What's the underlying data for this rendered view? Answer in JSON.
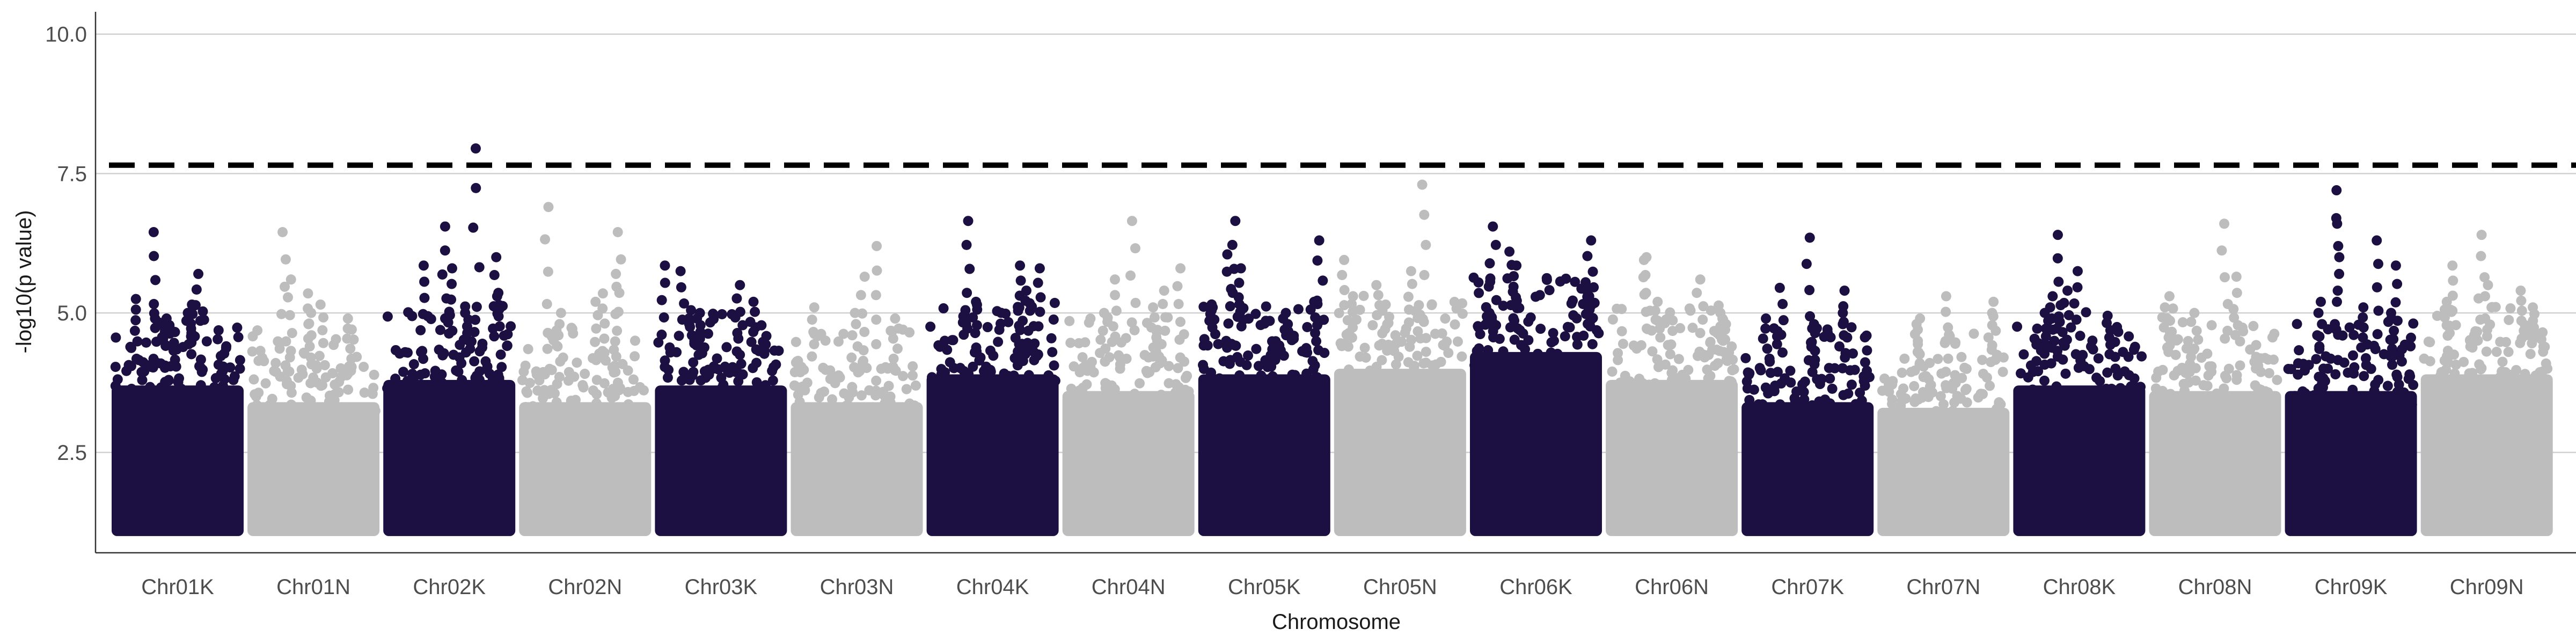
{
  "chart_data": {
    "type": "scatter",
    "subtype": "manhattan",
    "title": "",
    "xlabel": "Chromosome",
    "ylabel": "-log10(p value)",
    "ylim": [
      0.7,
      10.4
    ],
    "y_ticks": [
      2.5,
      5.0,
      7.5,
      10.0
    ],
    "y_tick_labels": [
      "2.5",
      "5.0",
      "7.5",
      "10.0"
    ],
    "grid": "horizontal major only",
    "legend": "none",
    "significance_threshold": 7.65,
    "threshold_style": "dashed black",
    "min_plotted_value": 1.0,
    "colors": {
      "dark": "#1c0f42",
      "light": "#bdbdbd",
      "threshold": "#000000",
      "grid": "#d0d0d0",
      "axis": "#333333"
    },
    "chromosomes": [
      {
        "name": "Chr01K",
        "color": "dark",
        "bulk_top": 4.3,
        "peaks": [
          6.45,
          5.7,
          5.25,
          5.15,
          5.0,
          4.9,
          4.85
        ]
      },
      {
        "name": "Chr01N",
        "color": "light",
        "bulk_top": 4.0,
        "peaks": [
          6.45,
          5.6,
          5.35,
          5.15,
          5.0,
          4.9
        ]
      },
      {
        "name": "Chr02K",
        "color": "dark",
        "bulk_top": 4.4,
        "peaks": [
          7.95,
          6.55,
          6.0,
          5.85,
          5.8,
          5.3,
          5.0
        ]
      },
      {
        "name": "Chr02N",
        "color": "light",
        "bulk_top": 4.0,
        "peaks": [
          6.9,
          6.45,
          5.7,
          5.35,
          5.2,
          5.0
        ]
      },
      {
        "name": "Chr03K",
        "color": "dark",
        "bulk_top": 4.3,
        "peaks": [
          5.85,
          5.75,
          5.5,
          5.2,
          5.05,
          4.9
        ]
      },
      {
        "name": "Chr03N",
        "color": "light",
        "bulk_top": 4.0,
        "peaks": [
          6.2,
          5.65,
          5.1,
          5.0,
          4.9
        ]
      },
      {
        "name": "Chr04K",
        "color": "dark",
        "bulk_top": 4.5,
        "peaks": [
          6.65,
          5.85,
          5.8,
          5.4,
          5.2,
          5.05
        ]
      },
      {
        "name": "Chr04N",
        "color": "light",
        "bulk_top": 4.2,
        "peaks": [
          6.65,
          5.8,
          5.6,
          5.4,
          5.1,
          5.0
        ]
      },
      {
        "name": "Chr05K",
        "color": "dark",
        "bulk_top": 4.5,
        "peaks": [
          6.65,
          6.3,
          6.05,
          5.8,
          5.2,
          5.1,
          5.0
        ]
      },
      {
        "name": "Chr05N",
        "color": "light",
        "bulk_top": 4.6,
        "peaks": [
          7.3,
          5.95,
          5.75,
          5.5,
          5.3,
          5.15
        ]
      },
      {
        "name": "Chr06K",
        "color": "dark",
        "bulk_top": 4.9,
        "peaks": [
          6.55,
          6.3,
          6.1,
          5.85,
          5.55,
          5.3,
          5.0
        ]
      },
      {
        "name": "Chr06N",
        "color": "light",
        "bulk_top": 4.4,
        "peaks": [
          6.0,
          5.95,
          5.6,
          5.2,
          5.0,
          4.9
        ]
      },
      {
        "name": "Chr07K",
        "color": "dark",
        "bulk_top": 4.0,
        "peaks": [
          6.35,
          5.45,
          5.4,
          5.0,
          4.9,
          4.8
        ]
      },
      {
        "name": "Chr07N",
        "color": "light",
        "bulk_top": 3.9,
        "peaks": [
          5.3,
          5.2,
          5.0,
          4.9,
          4.8
        ]
      },
      {
        "name": "Chr08K",
        "color": "dark",
        "bulk_top": 4.3,
        "peaks": [
          6.4,
          5.75,
          5.4,
          5.3,
          5.0,
          4.95
        ]
      },
      {
        "name": "Chr08N",
        "color": "light",
        "bulk_top": 4.2,
        "peaks": [
          6.6,
          5.65,
          5.3,
          5.1,
          5.0
        ]
      },
      {
        "name": "Chr09K",
        "color": "dark",
        "bulk_top": 4.2,
        "peaks": [
          7.2,
          6.7,
          6.3,
          5.85,
          5.2,
          5.1,
          5.0
        ]
      },
      {
        "name": "Chr09N",
        "color": "light",
        "bulk_top": 4.5,
        "peaks": [
          6.4,
          5.85,
          5.5,
          5.4,
          5.2,
          5.1
        ]
      }
    ]
  }
}
